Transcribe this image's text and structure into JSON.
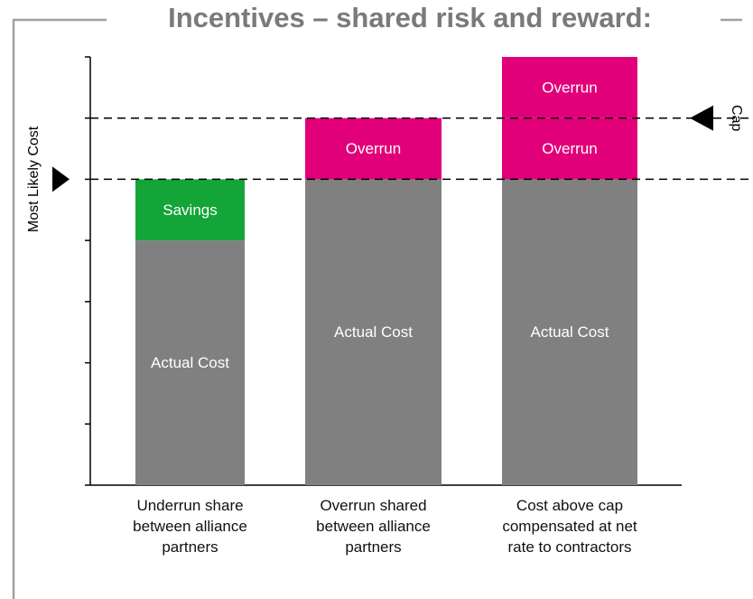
{
  "chart_data": {
    "type": "stacked_bar",
    "title": "Incentives  – shared risk and reward:",
    "categories": [
      "Underrun share\nbetween alliance\npartners",
      "Overrun shared\nbetween alliance\npartners",
      "Cost above cap\ncompensated at net\nrate to contractors"
    ],
    "series": [
      {
        "name": "Actual Cost",
        "color": "#808080",
        "values": [
          4,
          5,
          5
        ]
      },
      {
        "name": "Savings",
        "color": "#13a538",
        "values": [
          1,
          null,
          null
        ]
      },
      {
        "name": "Overrun",
        "color": "#e2007a",
        "values": [
          null,
          1,
          1
        ]
      },
      {
        "name": "Overrun",
        "color": "#e2007a",
        "values": [
          null,
          null,
          1
        ]
      }
    ],
    "ylim": [
      0,
      7
    ],
    "yticks": [
      0,
      1,
      2,
      3,
      4,
      5,
      6,
      7
    ],
    "reference_lines": [
      {
        "label": "Most Likely Cost",
        "value": 5,
        "side": "left"
      },
      {
        "label": "Cap",
        "value": 6,
        "side": "right"
      }
    ]
  }
}
